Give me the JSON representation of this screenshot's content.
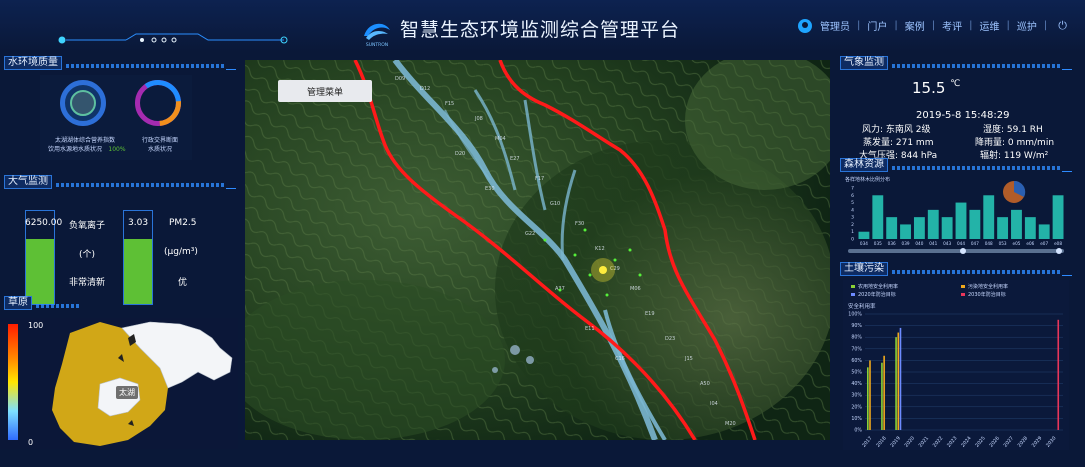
{
  "header": {
    "title": "智慧生态环境监测综合管理平台",
    "brand": "SUNTRON",
    "nav": [
      "管理员",
      "门户",
      "案例",
      "考评",
      "运维",
      "巡护"
    ],
    "icons": [
      "user-icon",
      "power-icon"
    ]
  },
  "water": {
    "title": "水环境质量",
    "item1_label": "太湖湖体综合营养指数",
    "item1_sub": "饮用水源地水质状况",
    "item1_value": "100%",
    "item2_label": "行政交界断面",
    "item2_sub": "水质状况"
  },
  "air": {
    "title": "大气监测",
    "ion_value": "6250.00",
    "ion_label": "负氧离子",
    "ion_unit": "(个)",
    "ion_status": "非常清新",
    "pm_value": "3.03",
    "pm_label": "PM2.5",
    "pm_unit": "(μg/m³)",
    "pm_status": "优",
    "ion_level": 0.7,
    "pm_level": 0.7
  },
  "grassland": {
    "title": "草原",
    "legend_max": "100",
    "legend_min": "0",
    "lake_label": "太湖"
  },
  "map": {
    "menu_label": "管理菜单"
  },
  "weather": {
    "title": "气象监测",
    "temp": "15.5",
    "temp_unit": "℃",
    "datetime": "2019-5-8 15:48:29",
    "wind": "风力: 东南风 2级",
    "humidity": "湿度: 59.1 RH",
    "evaporation": "蒸发量: 271 mm",
    "rainfall": "降雨量: 0 mm/min",
    "pressure": "大气压强: 844 hPa",
    "radiation": "辐射: 119 W/m²"
  },
  "forest": {
    "title": "森林资源"
  },
  "soil": {
    "title": "土壤污染"
  },
  "chart_data": [
    {
      "type": "bar",
      "title": "森林资源",
      "subtitle": "各样地林木比例分布",
      "categories": [
        "034",
        "035",
        "036",
        "039",
        "040",
        "041",
        "043",
        "044",
        "047",
        "048",
        "053",
        "e05",
        "e06",
        "e07",
        "e08"
      ],
      "values": [
        1,
        6,
        3,
        2,
        3,
        4,
        3,
        5,
        4,
        6,
        3,
        4,
        3,
        2,
        6
      ],
      "ylim": [
        0,
        7
      ],
      "color": "#23b3a8"
    },
    {
      "type": "bar",
      "title": "土壤污染",
      "ylabel": "安全利用率",
      "legend": [
        "农用地安全利用率",
        "污染地安全利用率",
        "2020年防治目标",
        "2030年防治目标"
      ],
      "legend_colors": [
        "#8bd236",
        "#f0a91c",
        "#6d8bff",
        "#e8365b"
      ],
      "ylim": [
        0,
        100
      ],
      "yticks": [
        "0%",
        "10%",
        "20%",
        "30%",
        "40%",
        "50%",
        "60%",
        "70%",
        "80%",
        "90%",
        "100%"
      ],
      "categories": [
        "2017",
        "2018",
        "2019",
        "2020",
        "2021",
        "2022",
        "2023",
        "2024",
        "2025",
        "2026",
        "2027",
        "2028",
        "2029",
        "2030"
      ],
      "series": [
        {
          "name": "农用地安全利用率",
          "values": [
            54,
            58,
            80,
            0,
            0,
            0,
            0,
            0,
            0,
            0,
            0,
            0,
            0,
            0
          ]
        },
        {
          "name": "污染地安全利用率",
          "values": [
            60,
            64,
            84,
            0,
            0,
            0,
            0,
            0,
            0,
            0,
            0,
            0,
            0,
            0
          ]
        },
        {
          "name": "2020年防治目标",
          "values": [
            0,
            0,
            88,
            0,
            0,
            0,
            0,
            0,
            0,
            0,
            0,
            0,
            0,
            0
          ]
        },
        {
          "name": "2030年防治目标",
          "values": [
            0,
            0,
            0,
            0,
            0,
            0,
            0,
            0,
            0,
            0,
            0,
            0,
            0,
            95
          ]
        }
      ]
    }
  ]
}
